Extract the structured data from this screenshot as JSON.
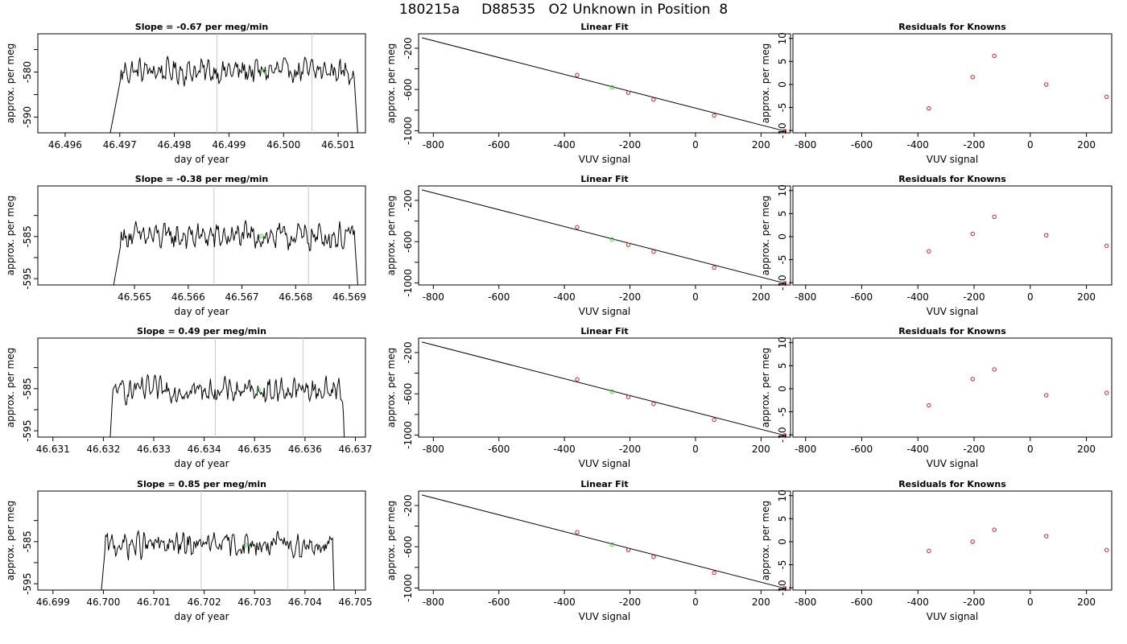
{
  "title": "180215a     D88535   O2 Unknown in Position  8",
  "colors": {
    "trace": "#000000",
    "vline": "#c8c8c8",
    "known": "#cc2222",
    "unknown": "#33dd33",
    "fit": "#000000"
  },
  "rows": [
    {
      "ts": {
        "title": "Slope =  -0.67  per meg/min",
        "xlabel": "day of year",
        "ylabel": "approx. per meg",
        "xlim": [
          46.4955,
          46.5015
        ],
        "ylim": [
          -593.5,
          -571.5
        ],
        "xticks": [
          46.496,
          46.497,
          46.498,
          46.499,
          46.5,
          46.501
        ],
        "xtick_labels": [
          "46.496",
          "46.497",
          "46.498",
          "46.499",
          "46.500",
          "46.501"
        ],
        "yticks": [
          -590,
          -585,
          -580,
          -575
        ],
        "ytick_labels": [
          "-590",
          "",
          "-580",
          ""
        ],
        "start": 46.4967,
        "end": 46.5014,
        "plateau_start": 46.49702,
        "plateau_end": 46.50129,
        "level": -579.8,
        "amp": 1.9,
        "vlines": [
          46.49878,
          46.50052
        ],
        "marker": {
          "x": 46.49965,
          "y": -579.7
        }
      },
      "fit": {
        "title": "Linear Fit",
        "xlabel": "VUV signal",
        "ylabel": "approx. per meg",
        "xlim": [
          -845,
          290
        ],
        "ylim": [
          -1020,
          -60
        ],
        "xticks": [
          -800,
          -600,
          -400,
          -200,
          0,
          200
        ],
        "xtick_labels": [
          "-800",
          "-600",
          "-400",
          "-200",
          "0",
          "200"
        ],
        "yticks": [
          -1000,
          -800,
          -600,
          -400,
          -200
        ],
        "ytick_labels": [
          "-1000",
          "",
          "-600",
          "",
          "-200"
        ],
        "line": [
          [
            -835,
            -98
          ],
          [
            272,
            -1003
          ]
        ],
        "knowns": [
          [
            -361,
            -460
          ],
          [
            -205,
            -631
          ],
          [
            -128,
            -698
          ],
          [
            57,
            -852
          ],
          [
            272,
            -1003
          ]
        ],
        "unknown": [
          [
            -254,
            -579
          ]
        ]
      },
      "res": {
        "title": "Residuals for Knowns",
        "xlabel": "VUV signal",
        "ylabel": "approx. per meg",
        "xlim": [
          -845,
          290
        ],
        "ylim": [
          -10.5,
          11
        ],
        "xticks": [
          -800,
          -600,
          -400,
          -200,
          0,
          200
        ],
        "xtick_labels": [
          "-800",
          "-600",
          "-400",
          "-200",
          "0",
          "200"
        ],
        "yticks": [
          -10,
          -5,
          0,
          5,
          10
        ],
        "ytick_labels": [
          "-10",
          "-5",
          "0",
          "5",
          "10"
        ],
        "points": [
          [
            -361,
            -5.2
          ],
          [
            -205,
            1.6
          ],
          [
            -128,
            6.2
          ],
          [
            57,
            0.0
          ],
          [
            272,
            -2.7
          ]
        ]
      }
    },
    {
      "ts": {
        "title": "Slope =  -0.38  per meg/min",
        "xlabel": "day of year",
        "ylabel": "approx. per meg",
        "xlim": [
          46.5632,
          46.5693
        ],
        "ylim": [
          -596.5,
          -573
        ],
        "xticks": [
          46.565,
          46.566,
          46.567,
          46.568,
          46.569
        ],
        "xtick_labels": [
          "46.565",
          "46.566",
          "46.567",
          "46.568",
          "46.569"
        ],
        "yticks": [
          -595,
          -590,
          -585,
          -580
        ],
        "ytick_labels": [
          "-595",
          "",
          "-585",
          ""
        ],
        "start": 46.5645,
        "end": 46.5692,
        "plateau_start": 46.56475,
        "plateau_end": 46.5691,
        "level": -585.0,
        "amp": 2.2,
        "vlines": [
          46.56648,
          46.56824
        ],
        "marker": {
          "x": 46.56736,
          "y": -584.9
        }
      },
      "fit": {
        "title": "Linear Fit",
        "xlabel": "VUV signal",
        "ylabel": "approx. per meg",
        "xlim": [
          -845,
          290
        ],
        "ylim": [
          -1020,
          -60
        ],
        "xticks": [
          -800,
          -600,
          -400,
          -200,
          0,
          200
        ],
        "xtick_labels": [
          "-800",
          "-600",
          "-400",
          "-200",
          "0",
          "200"
        ],
        "yticks": [
          -1000,
          -800,
          -600,
          -400,
          -200
        ],
        "ytick_labels": [
          "-1000",
          "",
          "-600",
          "",
          "-200"
        ],
        "line": [
          [
            -835,
            -98
          ],
          [
            272,
            -1003
          ]
        ],
        "knowns": [
          [
            -361,
            -460
          ],
          [
            -205,
            -631
          ],
          [
            -128,
            -698
          ],
          [
            57,
            -852
          ],
          [
            272,
            -1003
          ]
        ],
        "unknown": [
          [
            -254,
            -579
          ]
        ]
      },
      "res": {
        "title": "Residuals for Knowns",
        "xlabel": "VUV signal",
        "ylabel": "approx. per meg",
        "xlim": [
          -845,
          290
        ],
        "ylim": [
          -10.5,
          11
        ],
        "xticks": [
          -800,
          -600,
          -400,
          -200,
          0,
          200
        ],
        "xtick_labels": [
          "-800",
          "-600",
          "-400",
          "-200",
          "0",
          "200"
        ],
        "yticks": [
          -10,
          -5,
          0,
          5,
          10
        ],
        "ytick_labels": [
          "-10",
          "-5",
          "0",
          "5",
          "10"
        ],
        "points": [
          [
            -361,
            -3.2
          ],
          [
            -205,
            0.6
          ],
          [
            -128,
            4.3
          ],
          [
            57,
            0.3
          ],
          [
            272,
            -2.0
          ]
        ]
      }
    },
    {
      "ts": {
        "title": "Slope =  0.49  per meg/min",
        "xlabel": "day of year",
        "ylabel": "approx. per meg",
        "xlim": [
          46.6307,
          46.6372
        ],
        "ylim": [
          -596.5,
          -573
        ],
        "xticks": [
          46.631,
          46.632,
          46.633,
          46.634,
          46.635,
          46.636,
          46.637
        ],
        "xtick_labels": [
          "46.631",
          "46.632",
          "46.633",
          "46.634",
          "46.635",
          "46.636",
          "46.637"
        ],
        "yticks": [
          -595,
          -590,
          -585,
          -580
        ],
        "ytick_labels": [
          "-595",
          "",
          "-585",
          ""
        ],
        "start": 46.6321,
        "end": 46.6368,
        "plateau_start": 46.63218,
        "plateau_end": 46.63675,
        "level": -585.4,
        "amp": 2.0,
        "vlines": [
          46.63422,
          46.63596
        ],
        "marker": {
          "x": 46.63508,
          "y": -585.3
        }
      },
      "fit": {
        "title": "Linear Fit",
        "xlabel": "VUV signal",
        "ylabel": "approx. per meg",
        "xlim": [
          -845,
          290
        ],
        "ylim": [
          -1020,
          -60
        ],
        "xticks": [
          -800,
          -600,
          -400,
          -200,
          0,
          200
        ],
        "xtick_labels": [
          "-800",
          "-600",
          "-400",
          "-200",
          "0",
          "200"
        ],
        "yticks": [
          -1000,
          -800,
          -600,
          -400,
          -200
        ],
        "ytick_labels": [
          "-1000",
          "",
          "-600",
          "",
          "-200"
        ],
        "line": [
          [
            -835,
            -98
          ],
          [
            272,
            -1003
          ]
        ],
        "knowns": [
          [
            -361,
            -460
          ],
          [
            -205,
            -631
          ],
          [
            -128,
            -698
          ],
          [
            57,
            -852
          ],
          [
            272,
            -1003
          ]
        ],
        "unknown": [
          [
            -254,
            -579
          ]
        ]
      },
      "res": {
        "title": "Residuals for Knowns",
        "xlabel": "VUV signal",
        "ylabel": "approx. per meg",
        "xlim": [
          -845,
          290
        ],
        "ylim": [
          -10.5,
          11
        ],
        "xticks": [
          -800,
          -600,
          -400,
          -200,
          0,
          200
        ],
        "xtick_labels": [
          "-800",
          "-600",
          "-400",
          "-200",
          "0",
          "200"
        ],
        "yticks": [
          -10,
          -5,
          0,
          5,
          10
        ],
        "ytick_labels": [
          "-10",
          "-5",
          "0",
          "5",
          "10"
        ],
        "points": [
          [
            -361,
            -3.6
          ],
          [
            -205,
            2.1
          ],
          [
            -128,
            4.2
          ],
          [
            57,
            -1.4
          ],
          [
            272,
            -0.9
          ]
        ]
      }
    },
    {
      "ts": {
        "title": "Slope =  0.85  per meg/min",
        "xlabel": "day of year",
        "ylabel": "approx. per meg",
        "xlim": [
          46.6987,
          46.7052
        ],
        "ylim": [
          -596.5,
          -573
        ],
        "xticks": [
          46.699,
          46.7,
          46.701,
          46.702,
          46.703,
          46.704,
          46.705
        ],
        "xtick_labels": [
          "46.699",
          "46.700",
          "46.701",
          "46.702",
          "46.703",
          "46.704",
          "46.705"
        ],
        "yticks": [
          -595,
          -590,
          -585,
          -580
        ],
        "ytick_labels": [
          "-595",
          "",
          "-585",
          ""
        ],
        "start": 46.6999,
        "end": 46.7046,
        "plateau_start": 46.70003,
        "plateau_end": 46.70455,
        "level": -585.8,
        "amp": 2.0,
        "vlines": [
          46.70194,
          46.70366
        ],
        "marker": {
          "x": 46.70282,
          "y": -585.8
        }
      },
      "fit": {
        "title": "Linear Fit",
        "xlabel": "VUV signal",
        "ylabel": "approx. per meg",
        "xlim": [
          -845,
          290
        ],
        "ylim": [
          -1020,
          -60
        ],
        "xticks": [
          -800,
          -600,
          -400,
          -200,
          0,
          200
        ],
        "xtick_labels": [
          "-800",
          "-600",
          "-400",
          "-200",
          "0",
          "200"
        ],
        "yticks": [
          -1000,
          -800,
          -600,
          -400,
          -200
        ],
        "ytick_labels": [
          "-1000",
          "",
          "-600",
          "",
          "-200"
        ],
        "line": [
          [
            -835,
            -98
          ],
          [
            272,
            -1003
          ]
        ],
        "knowns": [
          [
            -361,
            -460
          ],
          [
            -205,
            -631
          ],
          [
            -128,
            -698
          ],
          [
            57,
            -852
          ],
          [
            272,
            -1003
          ]
        ],
        "unknown": [
          [
            -254,
            -579
          ]
        ]
      },
      "res": {
        "title": "Residuals for Knowns",
        "xlabel": "VUV signal",
        "ylabel": "approx. per meg",
        "xlim": [
          -845,
          290
        ],
        "ylim": [
          -10.5,
          11
        ],
        "xticks": [
          -800,
          -600,
          -400,
          -200,
          0,
          200
        ],
        "xtick_labels": [
          "-800",
          "-600",
          "-400",
          "-200",
          "0",
          "200"
        ],
        "yticks": [
          -10,
          -5,
          0,
          5,
          10
        ],
        "ytick_labels": [
          "-10",
          "-5",
          "0",
          "5",
          "10"
        ],
        "points": [
          [
            -361,
            -2.0
          ],
          [
            -205,
            0.0
          ],
          [
            -128,
            2.6
          ],
          [
            57,
            1.2
          ],
          [
            272,
            -1.8
          ]
        ]
      }
    }
  ]
}
